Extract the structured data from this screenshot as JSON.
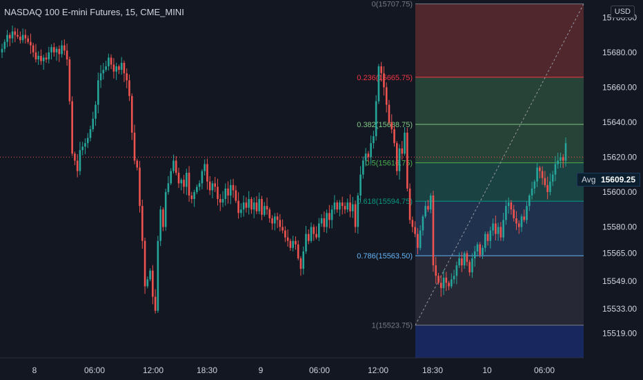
{
  "header": {
    "title": "NASDAQ 100 E-mini Futures, 15, CME_MINI",
    "currency": "USD"
  },
  "avg_label": {
    "label": "Avg",
    "value": "15609.25"
  },
  "colors": {
    "background": "#131722",
    "up": "#26a69a",
    "down": "#ef5350",
    "grid": "#1e222d",
    "fib_zone_top": "#5b2a2e",
    "fib_zone_green": "#2b4a3a",
    "fib_zone_teal": "#1d4a48",
    "fib_zone_blue": "#233656",
    "fib_zone_gray": "#2a2d38",
    "fib_zone_bottom": "#1b2a6a"
  },
  "chart_data": {
    "type": "candlestick",
    "title": "NASDAQ 100 E-mini Futures, 15, CME_MINI",
    "x_ticks": [
      "8",
      "06:00",
      "12:00",
      "18:30",
      "9",
      "06:00",
      "12:00",
      "18:30",
      "10",
      "06:00"
    ],
    "y_ticks": [
      "15700.00",
      "15680.00",
      "15660.00",
      "15640.00",
      "15620.00",
      "15600.00",
      "15580.00",
      "15565.00",
      "15549.00",
      "15533.00",
      "15519.00"
    ],
    "y_tick_values": [
      15700,
      15680,
      15660,
      15640,
      15620,
      15600,
      15580,
      15565,
      15549,
      15533,
      15519
    ],
    "ylim": [
      15505,
      15710
    ],
    "grid": false,
    "current_price_line": 15620,
    "fibonacci": {
      "levels": [
        {
          "ratio": "0",
          "label": "0(15707.75)",
          "price": 15707.75,
          "color": "#787b86"
        },
        {
          "ratio": "0.236",
          "label": "0.236(15665.75)",
          "price": 15665.75,
          "color": "#f23645"
        },
        {
          "ratio": "0.382",
          "label": "0.382(15638.75)",
          "price": 15638.75,
          "color": "#81c784"
        },
        {
          "ratio": "0.5",
          "label": "0.5(15616.75)",
          "price": 15616.75,
          "color": "#4caf50"
        },
        {
          "ratio": "0.618",
          "label": "0.618(15594.75)",
          "price": 15594.75,
          "color": "#089981"
        },
        {
          "ratio": "0.786",
          "label": "0.786(15563.50)",
          "price": 15563.5,
          "color": "#64b5f6"
        },
        {
          "ratio": "1",
          "label": "1(15523.75)",
          "price": 15523.75,
          "color": "#787b86"
        }
      ]
    },
    "series": [
      {
        "name": "",
        "close": [
          15682,
          15686,
          15690,
          15688,
          15692,
          15690,
          15689,
          15687,
          15690,
          15688,
          15686,
          15684,
          15680,
          15676,
          15678,
          15675,
          15677,
          15676,
          15680,
          15683,
          15680,
          15682,
          15679,
          15684,
          15681,
          15676,
          15652,
          15622,
          15618,
          15612,
          15624,
          15626,
          15628,
          15631,
          15636,
          15642,
          15650,
          15664,
          15668,
          15670,
          15672,
          15677,
          15673,
          15669,
          15672,
          15670,
          15674,
          15668,
          15664,
          15655,
          15634,
          15618,
          15614,
          15592,
          15572,
          15546,
          15550,
          15555,
          15540,
          15532,
          15572,
          15590,
          15580,
          15600,
          15605,
          15612,
          15618,
          15611,
          15605,
          15607,
          15603,
          15611,
          15598,
          15596,
          15600,
          15603,
          15605,
          15612,
          15616,
          15606,
          15601,
          15605,
          15603,
          15596,
          15594,
          15596,
          15602,
          15598,
          15604,
          15601,
          15595,
          15588,
          15590,
          15594,
          15591,
          15596,
          15590,
          15594,
          15589,
          15596,
          15587,
          15592,
          15590,
          15585,
          15582,
          15586,
          15584,
          15580,
          15578,
          15574,
          15572,
          15568,
          15572,
          15570,
          15562,
          15556,
          15566,
          15576,
          15572,
          15580,
          15576,
          15574,
          15582,
          15585,
          15580,
          15588,
          15584,
          15590,
          15594,
          15590,
          15594,
          15592,
          15590,
          15594,
          15589,
          15593,
          15580,
          15598,
          15610,
          15618,
          15622,
          15620,
          15628,
          15632,
          15652,
          15672,
          15668,
          15660,
          15650,
          15640,
          15636,
          15628,
          15612,
          15625,
          15622,
          15634,
          15602,
          15584,
          15580,
          15576,
          15568,
          15578,
          15586,
          15592,
          15590,
          15598,
          15558,
          15552,
          15548,
          15545,
          15551,
          15548,
          15546,
          15550,
          15552,
          15558,
          15562,
          15558,
          15565,
          15560,
          15554,
          15562,
          15566,
          15570,
          15564,
          15568,
          15576,
          15572,
          15578,
          15582,
          15576,
          15580,
          15574,
          15584,
          15592,
          15594,
          15590,
          15585,
          15582,
          15580,
          15586,
          15584,
          15592,
          15598,
          15602,
          15606,
          15614,
          15612,
          15608,
          15604,
          15600,
          15606,
          15610,
          15616,
          15618,
          15620,
          15618,
          15628
        ]
      }
    ]
  }
}
